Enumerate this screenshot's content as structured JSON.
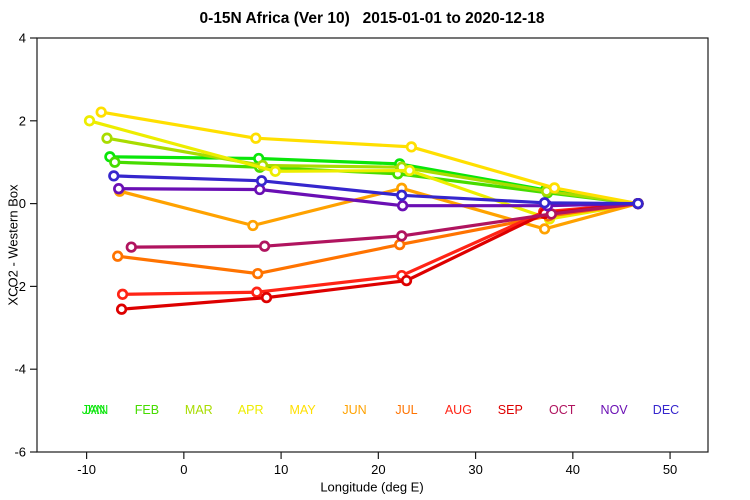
{
  "title": "0-15N Africa (Ver 10)   2015-01-01 to 2020-12-18",
  "chart_data": {
    "type": "line",
    "title": "0-15N Africa (Ver 10)   2015-01-01 to 2020-12-18",
    "xlabel": "Longitude (deg E)",
    "ylabel": "XCO2 - Western Box",
    "xlim": [
      -15.1,
      53.9
    ],
    "ylim": [
      -6,
      4
    ],
    "x_ticks": [
      -10,
      0,
      10,
      20,
      30,
      40,
      50
    ],
    "y_ticks": [
      4,
      2,
      0,
      -2,
      -4,
      -6
    ],
    "grid": false,
    "marker": "open-circle",
    "legend_position": "inside-bottom-row",
    "series": [
      {
        "name": "JAN",
        "color": "#0ae60a",
        "double_printed_label": true,
        "points": [
          [
            -7.6,
            1.13
          ],
          [
            7.7,
            1.09
          ],
          [
            22.2,
            0.96
          ],
          [
            37.2,
            0.33
          ],
          [
            46.7,
            0.0
          ]
        ]
      },
      {
        "name": "FEB",
        "color": "#46dc00",
        "double_printed_label": false,
        "points": [
          [
            -7.1,
            1.0
          ],
          [
            7.8,
            0.88
          ],
          [
            22.0,
            0.72
          ],
          [
            37.4,
            0.26
          ],
          [
            46.7,
            0.0
          ]
        ]
      },
      {
        "name": "MAR",
        "color": "#a8dc00",
        "double_printed_label": false,
        "points": [
          [
            -7.9,
            1.58
          ],
          [
            8.1,
            0.92
          ],
          [
            22.4,
            0.88
          ],
          [
            37.3,
            0.3
          ],
          [
            46.7,
            0.0
          ]
        ]
      },
      {
        "name": "APR",
        "color": "#eded00",
        "double_printed_label": false,
        "points": [
          [
            -9.7,
            2.0
          ],
          [
            9.4,
            0.78
          ],
          [
            23.2,
            0.8
          ],
          [
            37.6,
            -0.37
          ],
          [
            46.7,
            0.0
          ]
        ]
      },
      {
        "name": "MAY",
        "color": "#ffdf00",
        "double_printed_label": false,
        "points": [
          [
            -8.5,
            2.21
          ],
          [
            7.4,
            1.58
          ],
          [
            23.4,
            1.37
          ],
          [
            38.1,
            0.38
          ],
          [
            46.7,
            0.0
          ]
        ]
      },
      {
        "name": "JUN",
        "color": "#ffa200",
        "double_printed_label": false,
        "points": [
          [
            -6.6,
            0.3
          ],
          [
            7.1,
            -0.53
          ],
          [
            22.4,
            0.37
          ],
          [
            37.1,
            -0.61
          ],
          [
            46.7,
            0.0
          ]
        ]
      },
      {
        "name": "JUL",
        "color": "#ff7300",
        "double_printed_label": false,
        "points": [
          [
            -6.8,
            -1.27
          ],
          [
            7.6,
            -1.69
          ],
          [
            22.2,
            -0.99
          ],
          [
            37.5,
            -0.3
          ],
          [
            46.7,
            0.0
          ]
        ]
      },
      {
        "name": "AUG",
        "color": "#ff2416",
        "double_printed_label": false,
        "points": [
          [
            -6.3,
            -2.19
          ],
          [
            7.5,
            -2.14
          ],
          [
            22.4,
            -1.74
          ],
          [
            37.0,
            -0.2
          ],
          [
            46.7,
            0.0
          ]
        ]
      },
      {
        "name": "SEP",
        "color": "#dd0000",
        "double_printed_label": false,
        "points": [
          [
            -6.4,
            -2.55
          ],
          [
            8.5,
            -2.27
          ],
          [
            22.9,
            -1.86
          ],
          [
            37.1,
            -0.24
          ],
          [
            46.7,
            0.0
          ]
        ]
      },
      {
        "name": "OCT",
        "color": "#b0145f",
        "double_printed_label": false,
        "points": [
          [
            -5.4,
            -1.05
          ],
          [
            8.3,
            -1.03
          ],
          [
            22.4,
            -0.78
          ],
          [
            37.8,
            -0.25
          ],
          [
            46.7,
            0.0
          ]
        ]
      },
      {
        "name": "NOV",
        "color": "#6a0fb4",
        "double_printed_label": false,
        "points": [
          [
            -6.7,
            0.36
          ],
          [
            7.8,
            0.34
          ],
          [
            22.5,
            -0.05
          ],
          [
            37.4,
            -0.05
          ],
          [
            46.7,
            0.0
          ]
        ]
      },
      {
        "name": "DEC",
        "color": "#3626cd",
        "double_printed_label": false,
        "points": [
          [
            -7.2,
            0.67
          ],
          [
            8.0,
            0.55
          ],
          [
            22.4,
            0.2
          ],
          [
            37.1,
            0.02
          ],
          [
            46.7,
            0.0
          ]
        ]
      }
    ]
  }
}
